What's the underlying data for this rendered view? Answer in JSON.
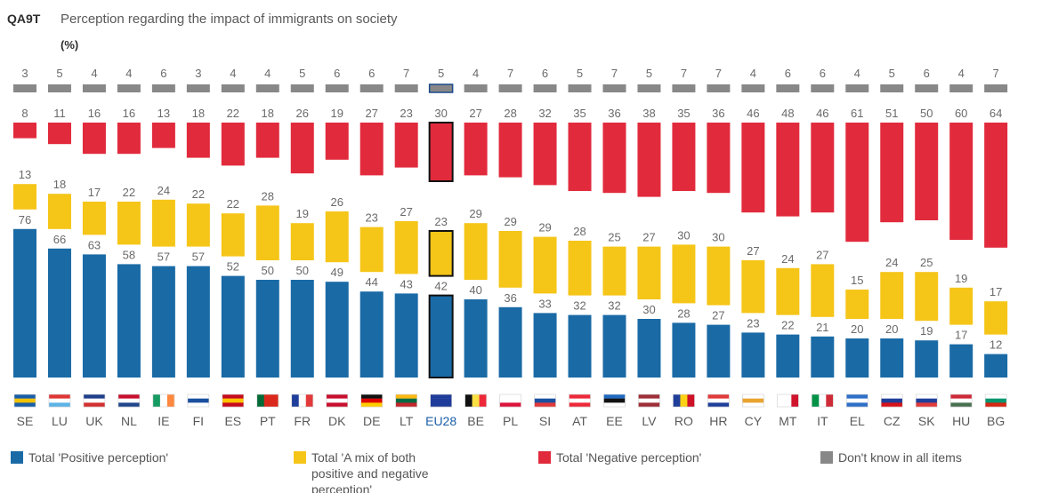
{
  "header": {
    "code": "QA9T",
    "title": "Perception regarding the impact of immigrants on society",
    "unit": "(%)"
  },
  "legend": [
    {
      "lines": [
        "Total 'Positive perception'"
      ],
      "color": "#1a6aa6"
    },
    {
      "lines": [
        "Total 'A mix of both",
        "positive and negative",
        "perception'"
      ],
      "color": "#f5c518"
    },
    {
      "lines": [
        "Total 'Negative perception'"
      ],
      "color": "#e12a3c"
    },
    {
      "lines": [
        "Don't know in all items"
      ],
      "color": "#888888"
    }
  ],
  "chart_data": {
    "type": "bar",
    "stacked": true,
    "highlight": "EU28",
    "categories": [
      "SE",
      "LU",
      "UK",
      "NL",
      "IE",
      "FI",
      "ES",
      "PT",
      "FR",
      "DK",
      "DE",
      "LT",
      "EU28",
      "BE",
      "PL",
      "SI",
      "AT",
      "EE",
      "LV",
      "RO",
      "HR",
      "CY",
      "MT",
      "IT",
      "EL",
      "CZ",
      "SK",
      "HU",
      "BG"
    ],
    "series": [
      {
        "name": "Total 'Positive perception'",
        "color": "#1a6aa6",
        "values": [
          76,
          66,
          63,
          58,
          57,
          57,
          52,
          50,
          50,
          49,
          44,
          43,
          42,
          40,
          36,
          33,
          32,
          32,
          30,
          28,
          27,
          23,
          22,
          21,
          20,
          20,
          19,
          17,
          12
        ]
      },
      {
        "name": "Total 'A mix of both positive and negative perception'",
        "color": "#f5c518",
        "values": [
          13,
          18,
          17,
          22,
          24,
          22,
          22,
          28,
          19,
          26,
          23,
          27,
          23,
          29,
          29,
          29,
          28,
          25,
          27,
          30,
          30,
          27,
          24,
          27,
          15,
          24,
          25,
          19,
          17
        ]
      },
      {
        "name": "Total 'Negative perception'",
        "color": "#e12a3c",
        "values": [
          8,
          11,
          16,
          16,
          13,
          18,
          22,
          18,
          26,
          19,
          27,
          23,
          30,
          27,
          28,
          32,
          35,
          36,
          38,
          35,
          36,
          46,
          48,
          46,
          61,
          51,
          50,
          60,
          64
        ]
      },
      {
        "name": "Don't know in all items",
        "color": "#888888",
        "values": [
          3,
          5,
          4,
          4,
          6,
          3,
          4,
          4,
          5,
          6,
          6,
          7,
          5,
          4,
          7,
          6,
          5,
          7,
          5,
          7,
          7,
          4,
          6,
          6,
          4,
          5,
          6,
          4,
          7
        ]
      }
    ]
  }
}
